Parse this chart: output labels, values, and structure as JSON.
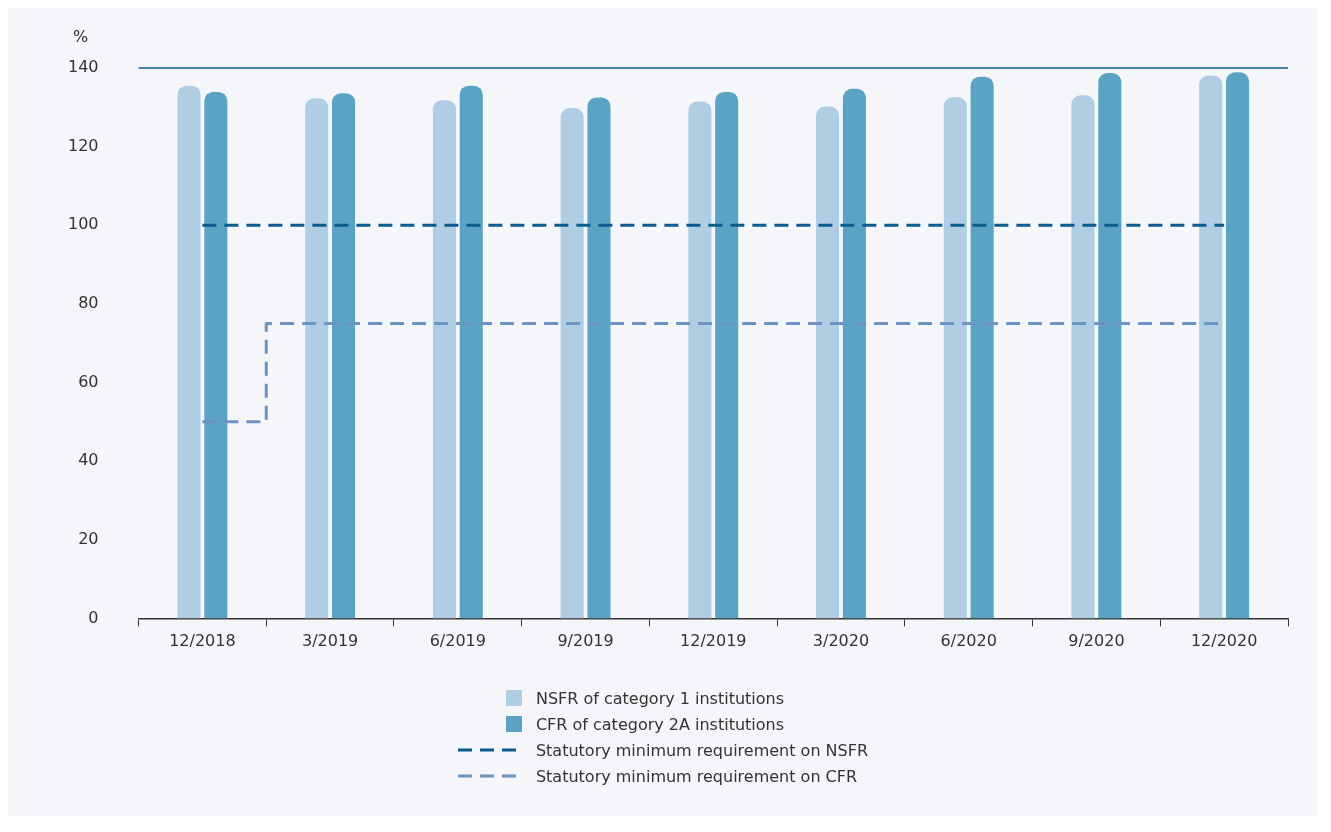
{
  "chart_data": {
    "type": "bar",
    "ylabel": "%",
    "categories": [
      "12/2018",
      "3/2019",
      "6/2019",
      "9/2019",
      "12/2019",
      "3/2020",
      "6/2020",
      "9/2020",
      "12/2020"
    ],
    "series": [
      {
        "name": "NSFR of category 1 institutions",
        "color": "#afcde3",
        "values": [
          135.5,
          132.3,
          131.8,
          129.8,
          131.5,
          130.2,
          132.6,
          133.1,
          138.1
        ]
      },
      {
        "name": "CFR of category 2A institutions",
        "color": "#5ba3c4",
        "values": [
          133.9,
          133.6,
          135.5,
          132.5,
          133.9,
          134.7,
          137.8,
          138.7,
          138.9
        ]
      },
      {
        "name": "Statutory minimum requirement on NSFR",
        "type": "line",
        "color": "#0b5c8c",
        "line_style": "dashed",
        "values": [
          100,
          100,
          100,
          100,
          100,
          100,
          100,
          100,
          100
        ]
      },
      {
        "name": "Statutory minimum requirement on CFR",
        "type": "step",
        "color": "#6b93c4",
        "line_style": "dashed",
        "values": [
          50,
          75,
          75,
          75,
          75,
          75,
          75,
          75,
          75
        ]
      }
    ],
    "ylim": [
      0,
      140
    ],
    "yticks": [
      0,
      20,
      40,
      60,
      80,
      100,
      120,
      140
    ],
    "grid": false,
    "legend": "bottom",
    "marker": "none"
  }
}
